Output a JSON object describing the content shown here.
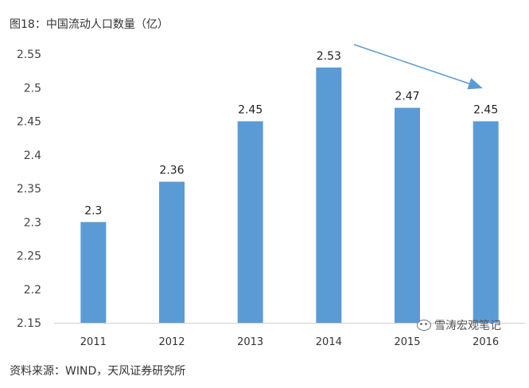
{
  "figure": {
    "title": "图18：中国流动人口数量（亿）",
    "source": "资料来源：WIND，天风证券研究所",
    "watermark": "雪涛宏观笔记",
    "watermark_icon": "wechat-icon"
  },
  "chart_data": {
    "type": "bar",
    "title": "",
    "xlabel": "",
    "ylabel": "",
    "categories": [
      "2011",
      "2012",
      "2013",
      "2014",
      "2015",
      "2016"
    ],
    "values": [
      2.3,
      2.36,
      2.45,
      2.53,
      2.47,
      2.45
    ],
    "data_labels": [
      "2.3",
      "2.36",
      "2.45",
      "2.53",
      "2.47",
      "2.45"
    ],
    "ylim": [
      2.15,
      2.55
    ],
    "yticks": [
      "2.15",
      "2.2",
      "2.25",
      "2.3",
      "2.35",
      "2.4",
      "2.45",
      "2.5",
      "2.55"
    ],
    "grid": false,
    "legend": "none",
    "bar_color": "#5b9bd5",
    "annotation": {
      "type": "arrow",
      "description": "downward trend arrow from 2014 toward 2016",
      "color": "#5b9bd5"
    }
  }
}
